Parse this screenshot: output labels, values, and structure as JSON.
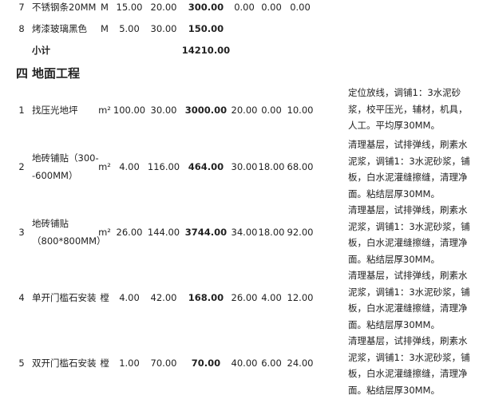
{
  "top_rows": [
    {
      "no": "7",
      "name": [
        "不锈钢条20MM"
      ],
      "unit": "M",
      "qty": "15.00",
      "price": "20.00",
      "total": "300.00",
      "c1": "0.00",
      "c2": "0.00",
      "c3": "0.00",
      "remark": []
    },
    {
      "no": "8",
      "name": [
        "烤漆玻璃黑色"
      ],
      "unit": "M",
      "qty": "5.00",
      "price": "30.00",
      "total": "150.00",
      "c1": "",
      "c2": "",
      "c3": "",
      "remark": []
    }
  ],
  "subtotal": {
    "label": "小计",
    "value": "14210.00"
  },
  "section": {
    "number": "四",
    "title": "地面工程"
  },
  "rows": [
    {
      "no": "1",
      "name": [
        "找压光地坪"
      ],
      "unit": "m²",
      "qty": "100.00",
      "price": "30.00",
      "total": "3000.00",
      "c1": "20.00",
      "c2": "0.00",
      "c3": "10.00",
      "remark": [
        "定位放线，调铺1：3水泥砂",
        "浆，校平压光，辅材，机具，",
        "人工。平均厚30MM。"
      ]
    },
    {
      "no": "2",
      "name": [
        "地砖铺贴（300-",
        "-600MM）"
      ],
      "unit": "m²",
      "qty": "4.00",
      "price": "116.00",
      "total": "464.00",
      "c1": "30.00",
      "c2": "18.00",
      "c3": "68.00",
      "remark": [
        "清理基层，试排弹线，刷素水",
        "泥浆，调铺1：3水泥砂浆，铺",
        "板，白水泥灌缝擦缝，清理净",
        "面。粘结层厚30MM。"
      ]
    },
    {
      "no": "3",
      "name": [
        "地砖铺贴",
        "（800*800MM）"
      ],
      "unit": "m²",
      "qty": "26.00",
      "price": "144.00",
      "total": "3744.00",
      "c1": "34.00",
      "c2": "18.00",
      "c3": "92.00",
      "remark": [
        "清理基层，试排弹线，刷素水",
        "泥浆，调铺1：3水泥砂浆，铺",
        "板，白水泥灌缝擦缝，清理净",
        "面。粘结层厚30MM。"
      ]
    },
    {
      "no": "4",
      "name": [
        "单开门槛石安装"
      ],
      "unit": "樘",
      "qty": "4.00",
      "price": "42.00",
      "total": "168.00",
      "c1": "26.00",
      "c2": "4.00",
      "c3": "12.00",
      "remark": [
        "清理基层，试排弹线，刷素水",
        "泥浆，调铺1：3水泥砂浆，铺",
        "板，白水泥灌缝擦缝，清理净",
        "面。粘结层厚30MM。"
      ]
    },
    {
      "no": "5",
      "name": [
        "双开门槛石安装"
      ],
      "unit": "樘",
      "qty": "1.00",
      "price": "70.00",
      "total": "70.00",
      "c1": "40.00",
      "c2": "6.00",
      "c3": "24.00",
      "remark": [
        "清理基层，试排弹线，刷素水",
        "泥浆，调铺1：3水泥砂浆，铺",
        "板，白水泥灌缝擦缝，清理净",
        "面。粘结层厚30MM。"
      ]
    }
  ]
}
